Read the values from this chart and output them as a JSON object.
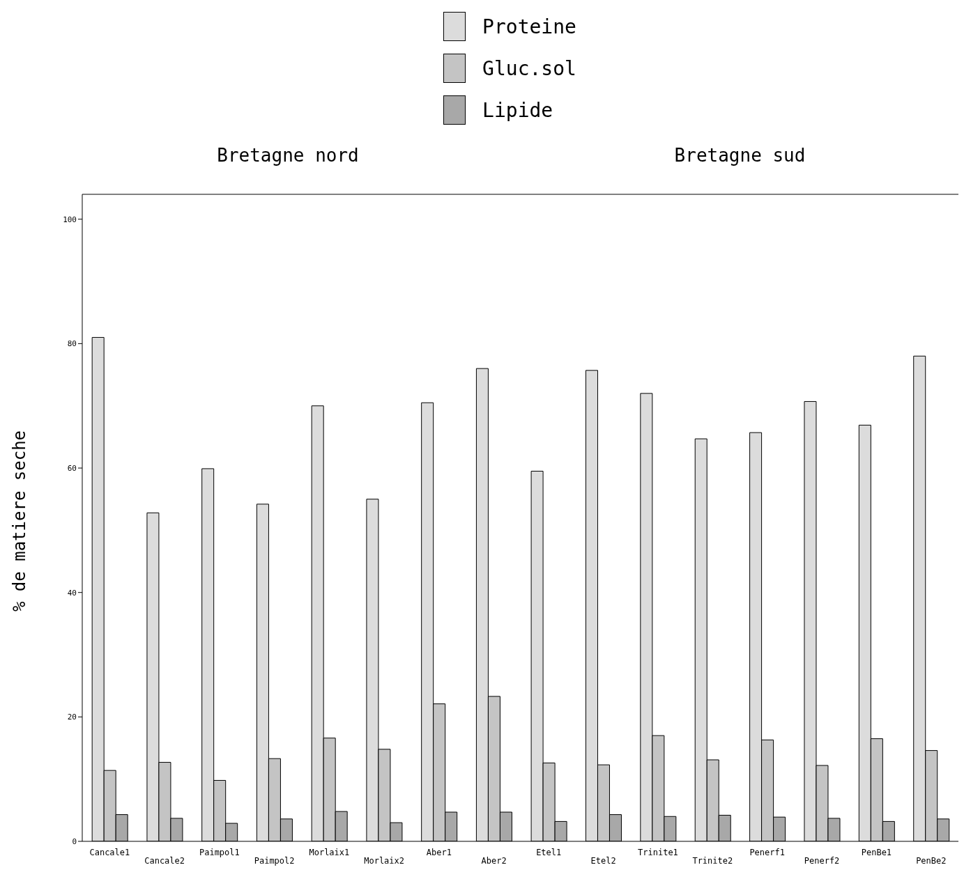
{
  "chart_data": [
    {
      "type": "bar",
      "title": "Bretagne nord",
      "ylabel": "% de matiere seche",
      "categories": [
        "Cancale1",
        "Cancale2",
        "Paimpol1",
        "Paimpol2",
        "Morlaix1",
        "Morlaix2",
        "Aber1",
        "Aber2"
      ],
      "series": [
        {
          "name": "Proteine",
          "color": "#dcdcdc",
          "values": [
            81,
            52.8,
            59.9,
            54.2,
            70,
            55,
            70.5,
            76
          ]
        },
        {
          "name": "Gluc.sol",
          "color": "#c4c4c4",
          "values": [
            11.4,
            12.7,
            9.8,
            13.3,
            16.6,
            14.8,
            22.1,
            23.3
          ]
        },
        {
          "name": "Lipide",
          "color": "#a8a8a8",
          "values": [
            4.3,
            3.7,
            2.9,
            3.6,
            4.8,
            3,
            4.7,
            4.7
          ]
        }
      ],
      "ylim": [
        0,
        104
      ],
      "yticks": [
        0,
        20,
        40,
        60,
        80,
        100
      ],
      "grid": false,
      "legend": "top"
    },
    {
      "type": "bar",
      "title": "Bretagne sud",
      "categories": [
        "Etel1",
        "Etel2",
        "Trinite1",
        "Trinite2",
        "Penerf1",
        "Penerf2",
        "PenBe1",
        "PenBe2"
      ],
      "series": [
        {
          "color": "#dcdcdc",
          "values": [
            59.5,
            75.7,
            72,
            64.7,
            65.7,
            70.7,
            66.9,
            78
          ]
        },
        {
          "color": "#c4c4c4",
          "values": [
            12.6,
            12.3,
            17,
            13.1,
            16.3,
            12.2,
            16.5,
            14.6
          ]
        },
        {
          "color": "#a8a8a8",
          "values": [
            3.2,
            4.3,
            4,
            4.2,
            3.9,
            3.7,
            3.2,
            3.6
          ]
        }
      ],
      "ylim": [
        0,
        104
      ],
      "yticks": [
        0,
        20,
        40,
        60,
        80,
        100
      ],
      "grid": false,
      "tick_labels": "x"
    }
  ]
}
